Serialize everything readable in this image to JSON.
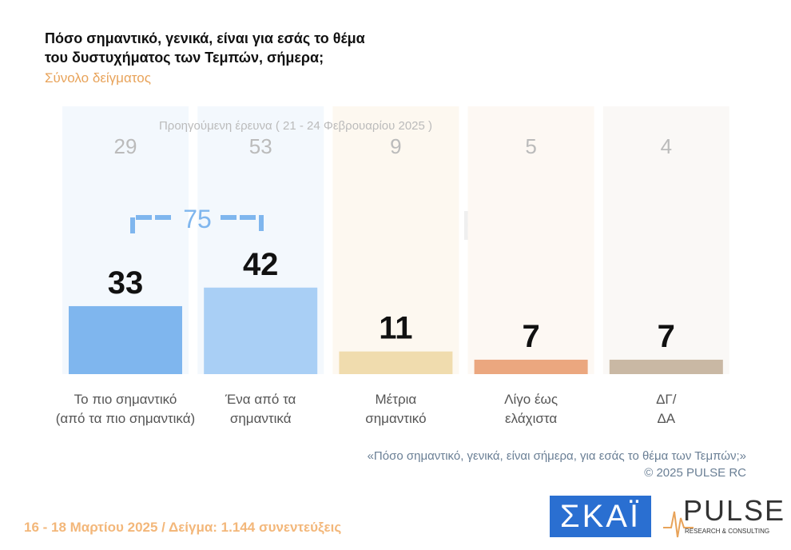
{
  "chart_data": {
    "type": "bar",
    "title": [
      "Πόσο σημαντικό, γενικά, είναι για εσάς το θέμα",
      "του δυστυχήματος των Τεμπών, σήμερα;"
    ],
    "subtitle": "Σύνολο δείγματος",
    "categories": [
      "Το πιο σημαντικό\n(από τα πιο σημαντικά)",
      "Ένα από τα\nσημαντικά",
      "Μέτρια\nσημαντικό",
      "Λίγο έως\nελάχιστα",
      "ΔΓ/\nΔΑ"
    ],
    "series": [
      {
        "values": [
          33,
          42,
          11,
          7,
          7
        ],
        "colors": [
          "#7fb6ee",
          "#a9cff5",
          "#f0dcae",
          "#eba77f",
          "#c9b8a4"
        ]
      },
      {
        "name": "Προηγούμενη έρευνα ( 21 - 24 Φεβρουαρίου 2025 )",
        "values": [
          29,
          53,
          9,
          5,
          4
        ],
        "color": "#bbbbbb"
      }
    ],
    "column_colors": [
      "#f3f8fd",
      "#f3f8fd",
      "#fdf8f0",
      "#fdf8f3",
      "#faf8f6"
    ],
    "bracket_value": 75,
    "bracket_color": "#7fb6ee",
    "ylim": [
      0,
      130
    ],
    "question": "«Πόσο σημαντικό, γενικά, είναι σήμερα, για εσάς το θέμα των Τεμπών;»",
    "copyright": "©  2025  PULSE RC",
    "footer": "16 - 18 Μαρτίου 2025  /  Δείγμα:  1.144 συνεντεύξεις",
    "logo_skai": "ΣΚΑΪ",
    "logo_pulse": "PULSE",
    "logo_pulse_sub": "RESEARCH & CONSULTING"
  }
}
